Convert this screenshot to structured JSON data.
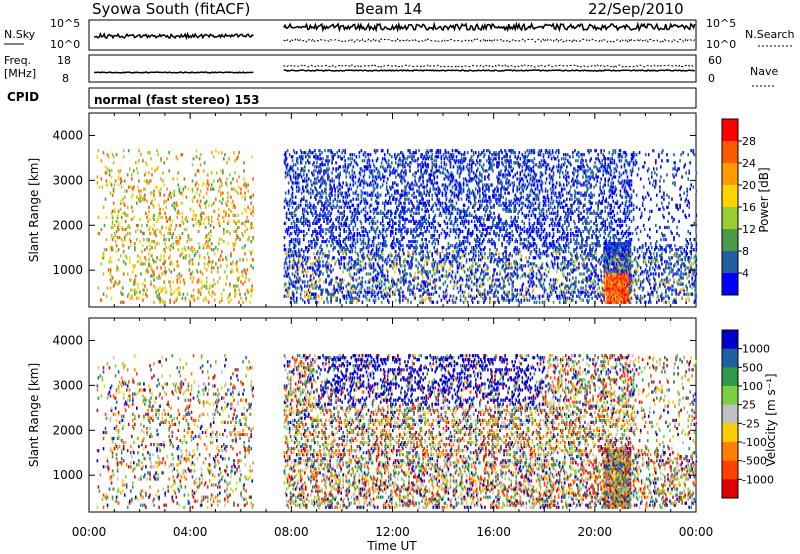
{
  "header": {
    "station": "Syowa South (fitACF)",
    "beam": "Beam 14",
    "date": "22/Sep/2010"
  },
  "noise_panel": {
    "left_label": "N.Sky",
    "left_ticks": [
      "10^5",
      "10^0"
    ],
    "right_ticks": [
      "10^5",
      "10^0"
    ],
    "right_label": "N.Search"
  },
  "freq_panel": {
    "left_label_1": "Freq.",
    "left_label_2": "[MHz]",
    "left_ticks": [
      "18",
      "8"
    ],
    "right_ticks": [
      "60",
      "0"
    ],
    "right_label": "Nave"
  },
  "cpid": {
    "label": "CPID",
    "mode": "normal (fast stereo) 153"
  },
  "chart_data": [
    {
      "type": "heatmap",
      "panel": "power",
      "ylabel": "Slant Range [km]",
      "ylim": [
        180,
        4500
      ],
      "yticks": [
        "1000",
        "2000",
        "3000",
        "4000"
      ],
      "xlim": [
        0,
        24
      ],
      "colorbar": {
        "label": "Power [dB]",
        "ticks": [
          "28",
          "24",
          "20",
          "16",
          "12",
          "8",
          "4"
        ],
        "colors": [
          "#ff0000",
          "#ff5a00",
          "#ff9a00",
          "#ffd200",
          "#9acd32",
          "#4a9a4a",
          "#1e60a0",
          "#0000ff"
        ]
      },
      "data_gap_hours": [
        6.5,
        7.7
      ]
    },
    {
      "type": "heatmap",
      "panel": "velocity",
      "ylabel": "Slant Range [km]",
      "ylim": [
        180,
        4500
      ],
      "yticks": [
        "1000",
        "2000",
        "3000",
        "4000"
      ],
      "xlim": [
        0,
        24
      ],
      "xticks": [
        "00:00",
        "04:00",
        "08:00",
        "12:00",
        "16:00",
        "20:00",
        "00:00"
      ],
      "xlabel": "Time UT",
      "colorbar": {
        "label": "Velocity [m s⁻¹]",
        "ticks": [
          "1000",
          "500",
          "100",
          "25",
          "-25",
          "-100",
          "-500",
          "-1000"
        ],
        "colors": [
          "#0000cc",
          "#1e60a0",
          "#2e9a4a",
          "#7ad040",
          "#c0c0c0",
          "#ffcc00",
          "#ff8000",
          "#ff4000",
          "#e00000"
        ]
      },
      "data_gap_hours": [
        6.5,
        7.7
      ]
    }
  ]
}
